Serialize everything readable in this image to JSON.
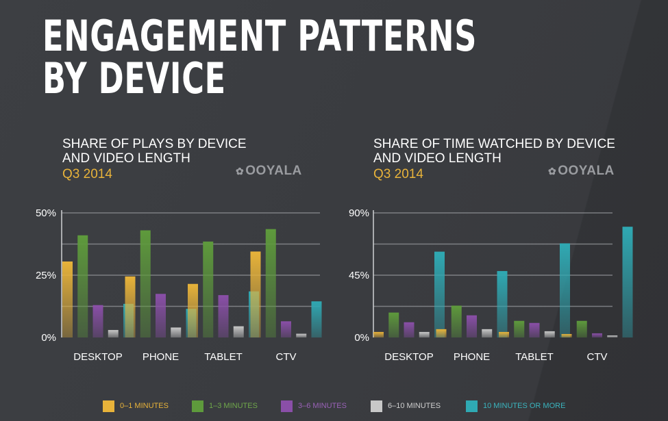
{
  "header": {
    "title_line1": "ENGAGEMENT PATTERNS",
    "title_line2": "BY DEVICE"
  },
  "logo_text": "OOYALA",
  "colors": {
    "min0_1": "#e8b33a",
    "min1_3": "#5e9a3c",
    "min3_6": "#8a4fa8",
    "min6_10": "#c8c8c8",
    "min10_plus": "#2fa9b3",
    "grid": "#8e9094",
    "background": "#3a3c40"
  },
  "legend": [
    {
      "label": "0–1 MINUTES",
      "color": "#e8b33a",
      "text_color": "#e8b33a"
    },
    {
      "label": "1–3 MINUTES",
      "color": "#5e9a3c",
      "text_color": "#6fa84a"
    },
    {
      "label": "3–6 MINUTES",
      "color": "#8a4fa8",
      "text_color": "#9a62b8"
    },
    {
      "label": "6–10 MINUTES",
      "color": "#c8c8c8",
      "text_color": "#d0d0d0"
    },
    {
      "label": "10 MINUTES OR MORE",
      "color": "#2fa9b3",
      "text_color": "#3ab4be"
    }
  ],
  "chart_data": [
    {
      "type": "bar",
      "title_line1": "SHARE OF PLAYS BY DEVICE",
      "title_line2": "AND VIDEO LENGTH",
      "subtitle": "Q3 2014",
      "categories": [
        "DESKTOP",
        "PHONE",
        "TABLET",
        "CTV"
      ],
      "ylim": [
        0,
        50
      ],
      "yticks": [
        0,
        25,
        50
      ],
      "ytick_labels": [
        "0%",
        "25%",
        "50%"
      ],
      "grid": true,
      "series": [
        {
          "name": "0–1 MINUTES",
          "values": [
            30.5,
            24.5,
            21.5,
            34.5
          ]
        },
        {
          "name": "1–3 MINUTES",
          "values": [
            41,
            43,
            38.5,
            43.5
          ]
        },
        {
          "name": "3–6 MINUTES",
          "values": [
            13,
            17.5,
            17,
            6.5
          ]
        },
        {
          "name": "6–10 MINUTES",
          "values": [
            3,
            4,
            4.5,
            1.5
          ]
        },
        {
          "name": "10 MINUTES OR MORE",
          "values": [
            13.5,
            11.5,
            18.5,
            14.5
          ]
        }
      ]
    },
    {
      "type": "bar",
      "title_line1": "SHARE OF TIME WATCHED BY DEVICE",
      "title_line2": "AND VIDEO LENGTH",
      "subtitle": "Q3 2014",
      "categories": [
        "DESKTOP",
        "PHONE",
        "TABLET",
        "CTV"
      ],
      "ylim": [
        0,
        90
      ],
      "yticks": [
        0,
        45,
        90
      ],
      "ytick_labels": [
        "0%",
        "45%",
        "90%"
      ],
      "grid": true,
      "series": [
        {
          "name": "0–1 MINUTES",
          "values": [
            4,
            6,
            4,
            2.5
          ]
        },
        {
          "name": "1–3 MINUTES",
          "values": [
            18,
            23,
            12,
            12
          ]
        },
        {
          "name": "3–6 MINUTES",
          "values": [
            11,
            16,
            10.5,
            3
          ]
        },
        {
          "name": "6–10 MINUTES",
          "values": [
            4,
            6,
            4.5,
            1.5
          ]
        },
        {
          "name": "10 MINUTES OR MORE",
          "values": [
            62,
            48,
            68,
            80
          ]
        }
      ]
    }
  ]
}
